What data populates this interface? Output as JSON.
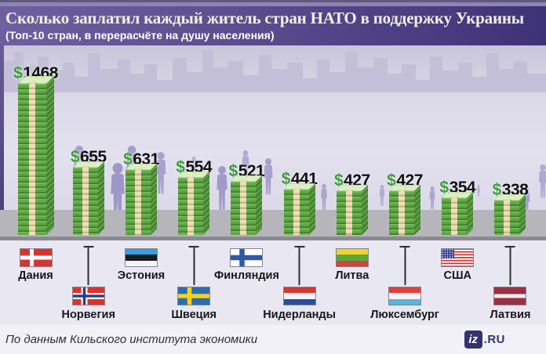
{
  "header": {
    "title": "Сколько заплатил каждый житель стран НАТО в поддержку Украины",
    "subtitle": "(Топ-10 стран, в перерасчёте на душу населения)"
  },
  "chart_data": {
    "type": "bar",
    "title": "Сколько заплатил каждый житель стран НАТО в поддержку Украины",
    "subtitle": "(Топ-10 стран, в перерасчёте на душу населения)",
    "currency_symbol": "$",
    "categories": [
      "Дания",
      "Норвегия",
      "Эстония",
      "Швеция",
      "Финляндия",
      "Нидерланды",
      "Литва",
      "Люксембург",
      "США",
      "Латвия"
    ],
    "values": [
      1468,
      655,
      631,
      554,
      521,
      441,
      427,
      427,
      354,
      338
    ],
    "flags": [
      "denmark",
      "norway",
      "estonia",
      "sweden",
      "finland",
      "netherlands",
      "lithuania",
      "luxembourg",
      "usa",
      "latvia"
    ],
    "ylim": [
      0,
      1468
    ],
    "grid": false,
    "legend": "none",
    "bar_style": "stack-of-banknotes"
  },
  "footer": {
    "source": "По данным Кильского института экономики",
    "logo_box": "iz",
    "logo_suffix": ".RU"
  },
  "colors": {
    "dollar_green": "#3e9c3c",
    "money_green": "#66ad4a",
    "header_purple_left": "#6e609f",
    "header_purple_right": "#3e3276",
    "silhouette_purple": "#a59ecb",
    "logo_navy": "#37316e"
  }
}
